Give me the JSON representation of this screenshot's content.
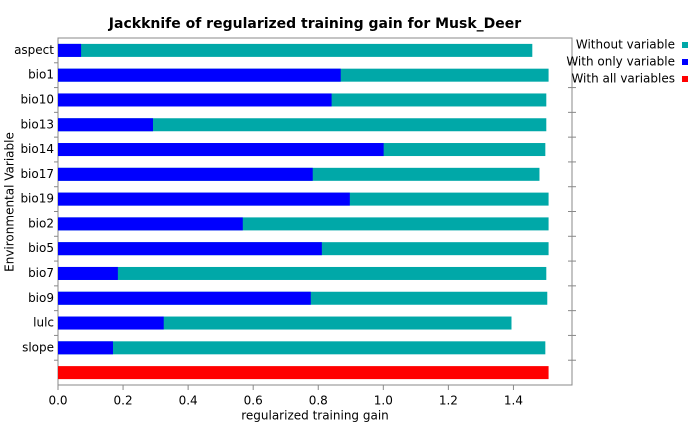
{
  "chart_data": {
    "type": "bar",
    "orientation": "horizontal",
    "title": "Jackknife of regularized training gain for Musk_Deer",
    "xlabel": "regularized training gain",
    "ylabel": "Environmental Variable",
    "categories": [
      "aspect",
      "bio1",
      "bio10",
      "bio13",
      "bio14",
      "bio17",
      "bio19",
      "bio2",
      "bio5",
      "bio7",
      "bio9",
      "lulc",
      "slope",
      null
    ],
    "series": [
      {
        "name": "Without variable",
        "color": "#00a8a8",
        "values": [
          1.458,
          1.508,
          1.501,
          1.501,
          1.498,
          1.48,
          1.508,
          1.508,
          1.508,
          1.501,
          1.504,
          1.394,
          1.498,
          null
        ]
      },
      {
        "name": "With only variable",
        "color": "#0000ff",
        "values": [
          0.071,
          0.869,
          0.841,
          0.292,
          1.001,
          0.783,
          0.897,
          0.568,
          0.811,
          0.184,
          0.777,
          0.325,
          0.169,
          null
        ]
      },
      {
        "name": "With all variables",
        "color": "#ff0000",
        "values": [
          null,
          null,
          null,
          null,
          null,
          null,
          null,
          null,
          null,
          null,
          null,
          null,
          null,
          1.508
        ]
      }
    ],
    "xlim": [
      0,
      1.58
    ],
    "xticks": [
      {
        "value": 0,
        "label": "0.0"
      },
      0.2,
      0.4,
      0.6,
      0.8,
      {
        "value": 1,
        "label": "1.0"
      },
      1.2,
      1.4
    ],
    "legend": "top-right"
  }
}
